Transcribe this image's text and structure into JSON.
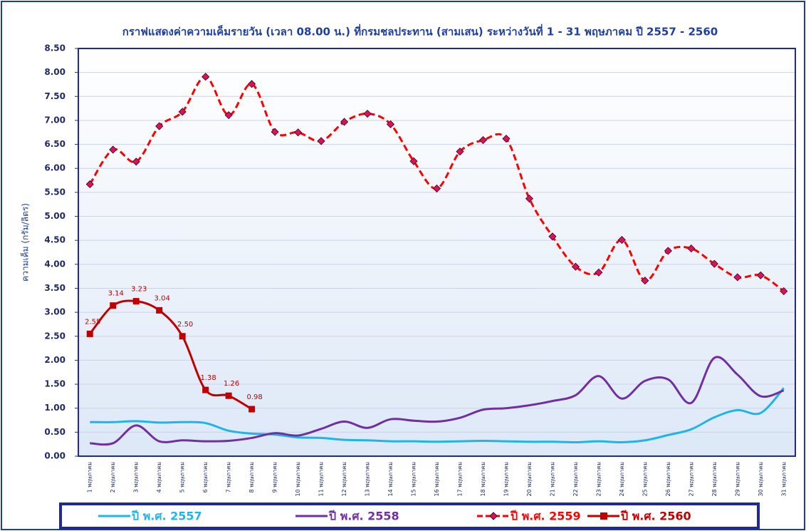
{
  "chart_data": {
    "type": "line",
    "title": "กราฟแสดงค่าความเค็มรายวัน (เวลา 08.00 น.) ที่กรมชลประทาน (สามเสน) ระหว่างวันที่ 1 - 31 พฤษภาคม ปี 2557 - 2560",
    "y_label": "ความเค็ม (กรัม/ลิตร)",
    "categories": [
      "1 พฤษภาคม",
      "2 พฤษภาคม",
      "3 พฤษภาคม",
      "4 พฤษภาคม",
      "5 พฤษภาคม",
      "6 พฤษภาคม",
      "7 พฤษภาคม",
      "8 พฤษภาคม",
      "9 พฤษภาคม",
      "10 พฤษภาคม",
      "11 พฤษภาคม",
      "12 พฤษภาคม",
      "13 พฤษภาคม",
      "14 พฤษภาคม",
      "15 พฤษภาคม",
      "16 พฤษภาคม",
      "17 พฤษภาคม",
      "18 พฤษภาคม",
      "19 พฤษภาคม",
      "20 พฤษภาคม",
      "21 พฤษภาคม",
      "22 พฤษภาคม",
      "23 พฤษภาคม",
      "24 พฤษภาคม",
      "25 พฤษภาคม",
      "26 พฤษภาคม",
      "27 พฤษภาคม",
      "28 พฤษภาคม",
      "29 พฤษภาคม",
      "30 พฤษภาคม",
      "31 พฤษภาคม"
    ],
    "series": [
      {
        "name": "ปี พ.ศ. 2557",
        "color": "#1fb5e8",
        "line_style": "solid",
        "marker": "none",
        "values": [
          0.71,
          0.71,
          0.73,
          0.7,
          0.71,
          0.69,
          0.53,
          0.47,
          0.45,
          0.39,
          0.38,
          0.34,
          0.33,
          0.31,
          0.31,
          0.3,
          0.31,
          0.32,
          0.31,
          0.3,
          0.3,
          0.29,
          0.31,
          0.29,
          0.33,
          0.44,
          0.56,
          0.81,
          0.96,
          0.9,
          1.42
        ]
      },
      {
        "name": "ปี พ.ศ. 2558",
        "color": "#7030a0",
        "line_style": "solid",
        "marker": "none",
        "values": [
          0.27,
          0.27,
          0.64,
          0.31,
          0.33,
          0.31,
          0.32,
          0.38,
          0.48,
          0.43,
          0.57,
          0.72,
          0.59,
          0.77,
          0.74,
          0.72,
          0.8,
          0.97,
          1.0,
          1.06,
          1.15,
          1.27,
          1.67,
          1.2,
          1.57,
          1.6,
          1.11,
          2.05,
          1.7,
          1.25,
          1.37
        ]
      },
      {
        "name": "ปี พ.ศ. 2559",
        "color": "#ff0000",
        "line_style": "dashed",
        "marker": "diamond",
        "marker_color": "#d6145a",
        "values": [
          5.67,
          6.39,
          6.14,
          6.88,
          7.18,
          7.91,
          7.11,
          7.76,
          6.76,
          6.75,
          6.57,
          6.97,
          7.14,
          6.92,
          6.15,
          5.58,
          6.35,
          6.59,
          6.62,
          5.37,
          4.58,
          3.95,
          3.83,
          4.51,
          3.66,
          4.28,
          4.33,
          4.01,
          3.73,
          3.77,
          3.44
        ]
      },
      {
        "name": "ปี พ.ศ. 2560",
        "color": "#c00000",
        "line_style": "solid",
        "marker": "square",
        "marker_color": "#c00000",
        "values": [
          2.55,
          3.14,
          3.23,
          3.04,
          2.5,
          1.38,
          1.26,
          0.98,
          null,
          null,
          null,
          null,
          null,
          null,
          null,
          null,
          null,
          null,
          null,
          null,
          null,
          null,
          null,
          null,
          null,
          null,
          null,
          null,
          null,
          null,
          null
        ],
        "value_labels": [
          "2.55",
          "3.14",
          "3.23",
          "3.04",
          "2.50",
          "1.38",
          "1.26",
          "0.98",
          null,
          null,
          null,
          null,
          null,
          null,
          null,
          null,
          null,
          null,
          null,
          null,
          null,
          null,
          null,
          null,
          null,
          null,
          null,
          null,
          null,
          null,
          null
        ]
      }
    ],
    "ylim": [
      0,
      8.5
    ],
    "yticks": [
      {
        "value": 0,
        "label": "0.00"
      },
      {
        "value": 0.5,
        "label": "0.50"
      },
      {
        "value": 1,
        "label": "1.00"
      },
      {
        "value": 1.5,
        "label": "1.50"
      },
      {
        "value": 2,
        "label": "2.00"
      },
      {
        "value": 2.5,
        "label": "2.50"
      },
      {
        "value": 3,
        "label": "3.00"
      },
      {
        "value": 3.5,
        "label": "3.50"
      },
      {
        "value": 4,
        "label": "4.00"
      },
      {
        "value": 4.5,
        "label": "4.50"
      },
      {
        "value": 5,
        "label": "5.00"
      },
      {
        "value": 5.5,
        "label": "5.50"
      },
      {
        "value": 6,
        "label": "6.00"
      },
      {
        "value": 6.5,
        "label": "6.50"
      },
      {
        "value": 7,
        "label": "7.00"
      },
      {
        "value": 7.5,
        "label": "7.50"
      },
      {
        "value": 8,
        "label": "8.00"
      },
      {
        "value": 8.5,
        "label": "8.50"
      }
    ],
    "grid": true,
    "legend": "bottom"
  }
}
